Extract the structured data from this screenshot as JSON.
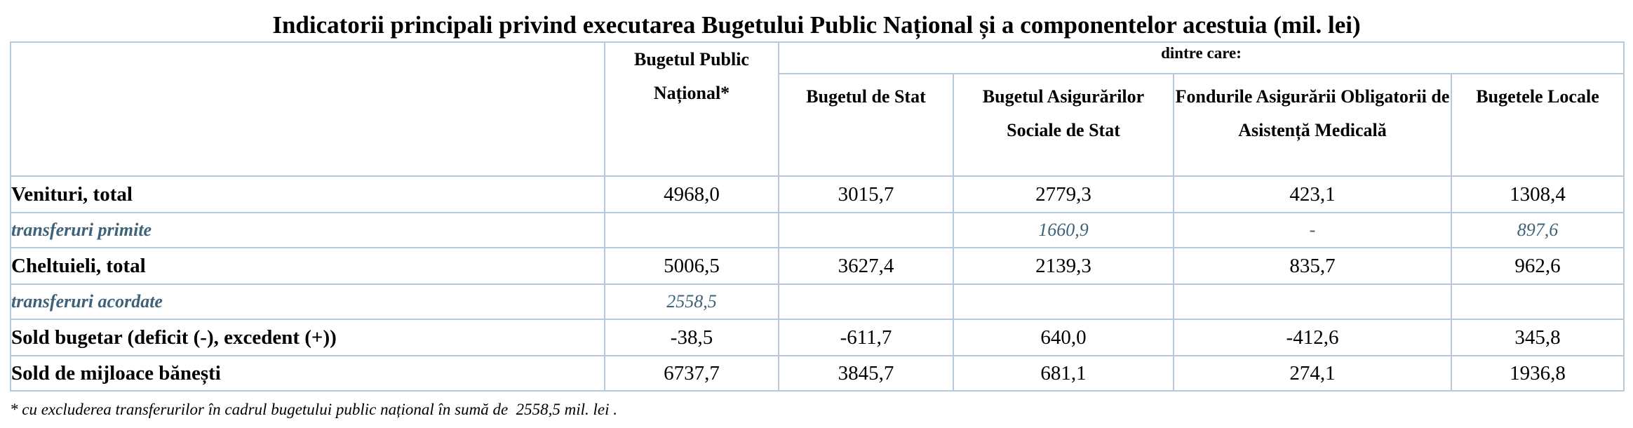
{
  "title": "Indicatorii principali privind executarea Bugetului Public Național și a componentelor acestuia (mil. lei)",
  "header": {
    "bpn": "Bugetul Public Național*",
    "dintre_care": "dintre care:",
    "bs": "Bugetul de Stat",
    "basc": "Bugetul Asigurărilor Sociale de Stat",
    "foam": "Fondurile Asigurării Obligatorii de Asistență Medicală",
    "bl": "Bugetele Locale"
  },
  "rows": [
    {
      "label": "Venituri, total",
      "values": [
        "4968,0",
        "3015,7",
        "2779,3",
        "423,1",
        "1308,4"
      ]
    },
    {
      "label": "transferuri primite",
      "values": [
        "",
        "",
        "1660,9",
        "-",
        "897,6"
      ]
    },
    {
      "label": "Cheltuieli, total",
      "values": [
        "5006,5",
        "3627,4",
        "2139,3",
        "835,7",
        "962,6"
      ]
    },
    {
      "label": "transferuri acordate",
      "values": [
        "2558,5",
        "",
        "",
        "",
        ""
      ]
    },
    {
      "label": "Sold bugetar (deficit (-), excedent (+))",
      "values": [
        "-38,5",
        "-611,7",
        "640,0",
        "-412,6",
        "345,8"
      ]
    },
    {
      "label": "Sold de mijloace bănești",
      "values": [
        "6737,7",
        "3845,7",
        "681,1",
        "274,1",
        "1936,8"
      ]
    }
  ],
  "footnote": "* cu excluderea transferurilor în cadrul bugetului public național în sumă de  2558,5 mil. lei ."
}
